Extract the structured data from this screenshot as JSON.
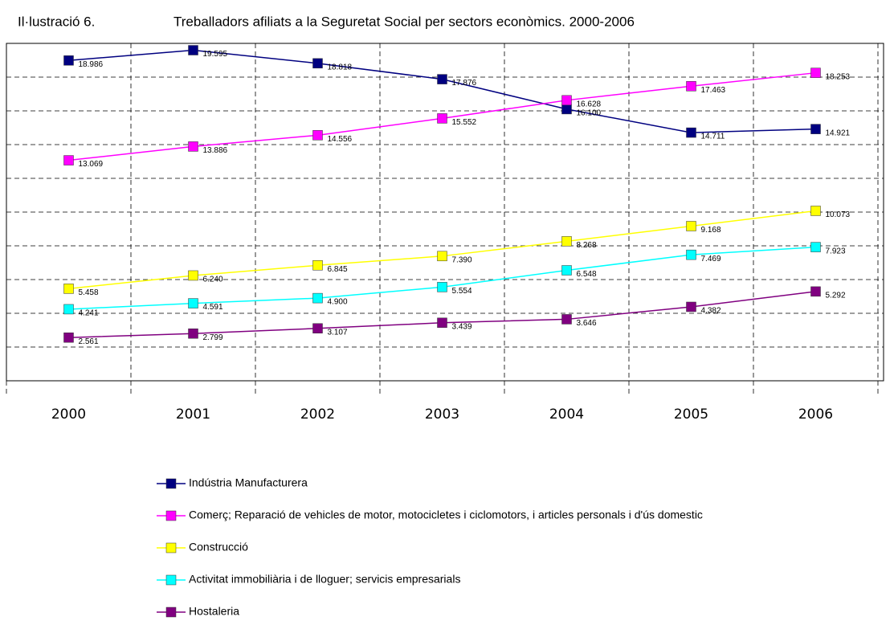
{
  "chart_data": {
    "type": "line",
    "figure_label": "Il·lustració 6.",
    "title": "Treballadors afiliats a la Seguretat Social per sectors econòmics. 2000-2006",
    "categories": [
      "2000",
      "2001",
      "2002",
      "2003",
      "2004",
      "2005",
      "2006"
    ],
    "series": [
      {
        "name": "Indústria Manufacturera",
        "color": "#000080",
        "values": [
          18986,
          19595,
          18818,
          17876,
          16100,
          14711,
          14921
        ],
        "value_labels": [
          "18.986",
          "19.595",
          "18.818",
          "17.876",
          "16.100",
          "14.711",
          "14.921"
        ]
      },
      {
        "name": "Comerç; Reparació de vehicles de motor, motocicletes i ciclomotors, i articles personals i d'ús domestic",
        "color": "#ff00ff",
        "values": [
          13069,
          13886,
          14556,
          15552,
          16628,
          17463,
          18253
        ],
        "value_labels": [
          "13.069",
          "13.886",
          "14.556",
          "15.552",
          "16.628",
          "17.463",
          "18.253"
        ]
      },
      {
        "name": "Construcció",
        "color": "#ffff00",
        "values": [
          5458,
          6240,
          6845,
          7390,
          8268,
          9168,
          10073
        ],
        "value_labels": [
          "5.458",
          "6.240",
          "6.845",
          "7.390",
          "8.268",
          "9.168",
          "10.073"
        ]
      },
      {
        "name": "Activitat immobiliària i de lloguer; servicis empresarials",
        "color": "#00ffff",
        "values": [
          4241,
          4591,
          4900,
          5554,
          6548,
          7469,
          7923
        ],
        "value_labels": [
          "4.241",
          "4.591",
          "4.900",
          "5.554",
          "6.548",
          "7.469",
          "7.923"
        ]
      },
      {
        "name": "Hostaleria",
        "color": "#800080",
        "values": [
          2561,
          2799,
          3107,
          3439,
          3646,
          4382,
          5292
        ],
        "value_labels": [
          "2.561",
          "2.799",
          "3.107",
          "3.439",
          "3.646",
          "4.382",
          "5.292"
        ]
      }
    ],
    "ylim": [
      0,
      20000
    ],
    "yticks": [
      0,
      2000,
      4000,
      6000,
      8000,
      10000,
      12000,
      14000,
      16000,
      18000,
      20000
    ],
    "grid": true
  }
}
